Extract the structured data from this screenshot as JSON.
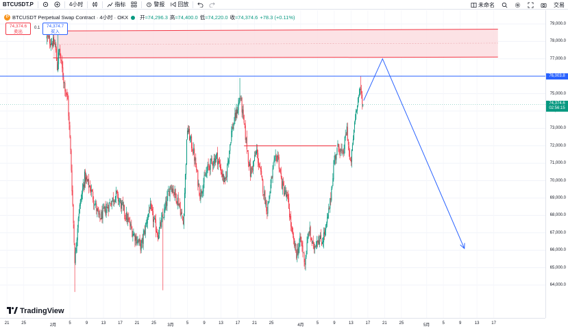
{
  "toolbar": {
    "symbol": "BTCUSDT.P",
    "interval": "4小时",
    "indicators_label": "指标",
    "alert_label": "警报",
    "replay_label": "回放",
    "layout_name": "未命名",
    "trade_label": "交易"
  },
  "legend": {
    "title": "BTCUSDT Perpetual Swap Contract · 4小时 · OKX",
    "open_label": "开",
    "open_value": "≈74,29",
    "open_value_tail": "6.3",
    "high_label": "高",
    "high_value": "≈74,400.0",
    "low_label": "低",
    "low_value": "≈74,220.0",
    "close_label": "收",
    "close_value": "≈74,374.6",
    "change_value": "+78.3 (+0.11%)"
  },
  "trade": {
    "sell_price": "74,374.6",
    "sell_label": "卖出",
    "spread": "0.1",
    "buy_price": "74,374.7",
    "buy_label": "买入"
  },
  "price_tags": {
    "level_price": "76,003.8",
    "last_price": "74,374.6",
    "countdown": "02:56:15"
  },
  "branding": {
    "logo_text": "TradingView"
  },
  "colors": {
    "up": "#089981",
    "down": "#f23645",
    "zone_fill": "#fcdde0",
    "zone_border": "#f23645",
    "level_line": "#2962ff",
    "projection": "#2962ff"
  },
  "chart_data": {
    "type": "candlestick",
    "ylim": [
      63500,
      79100
    ],
    "y_ticks": [
      "79,000.0",
      "78,000.0",
      "77,000.0",
      "75,000.0",
      "74,000.0",
      "73,000.0",
      "72,000.0",
      "71,000.0",
      "70,000.0",
      "69,000.0",
      "68,000.0",
      "67,000.0",
      "66,000.0",
      "65,000.0",
      "64,000.0"
    ],
    "y_tick_values": [
      79000,
      78000,
      77000,
      75000,
      74000,
      73000,
      72000,
      71000,
      70000,
      69000,
      68000,
      67000,
      66000,
      65000,
      64000
    ],
    "x_ticks": [
      "21",
      "25",
      "2月",
      "5",
      "9",
      "13",
      "17",
      "21",
      "25",
      "3月",
      "5",
      "9",
      "13",
      "17",
      "21",
      "25",
      "4月",
      "5",
      "9",
      "13",
      "17",
      "21",
      "25",
      "5月",
      "5",
      "9",
      "13",
      "17"
    ],
    "x_tick_days": [
      -11,
      -7,
      0,
      4,
      8,
      12,
      16,
      20,
      24,
      28,
      32,
      36,
      40,
      44,
      48,
      52,
      59,
      63,
      67,
      71,
      75,
      79,
      83,
      89,
      93,
      97,
      101,
      105
    ],
    "candles_per_day": 6,
    "first_candle_day": -1.5,
    "anchors": [
      {
        "day": -1.5,
        "price": 78200
      },
      {
        "day": 0.5,
        "price": 77800
      },
      {
        "day": 1.0,
        "price": 76500
      },
      {
        "day": 1.5,
        "price": 77500
      },
      {
        "day": 2.5,
        "price": 75800
      },
      {
        "day": 3.5,
        "price": 74600
      },
      {
        "day": 4.2,
        "price": 71500
      },
      {
        "day": 5.2,
        "price": 65300
      },
      {
        "day": 6.0,
        "price": 68000
      },
      {
        "day": 7.5,
        "price": 70200
      },
      {
        "day": 9.0,
        "price": 69500
      },
      {
        "day": 11.0,
        "price": 67800
      },
      {
        "day": 13.0,
        "price": 68500
      },
      {
        "day": 15.0,
        "price": 69200
      },
      {
        "day": 17.0,
        "price": 68200
      },
      {
        "day": 19.0,
        "price": 67000
      },
      {
        "day": 21.0,
        "price": 66200
      },
      {
        "day": 23.0,
        "price": 68500
      },
      {
        "day": 25.0,
        "price": 66900
      },
      {
        "day": 26.5,
        "price": 68200
      },
      {
        "day": 28.0,
        "price": 69800
      },
      {
        "day": 30.0,
        "price": 68700
      },
      {
        "day": 31.0,
        "price": 67500
      },
      {
        "day": 32.0,
        "price": 73000
      },
      {
        "day": 33.5,
        "price": 71600
      },
      {
        "day": 35.0,
        "price": 69200
      },
      {
        "day": 37.0,
        "price": 70800
      },
      {
        "day": 39.0,
        "price": 71400
      },
      {
        "day": 41.0,
        "price": 69800
      },
      {
        "day": 42.5,
        "price": 72800
      },
      {
        "day": 44.0,
        "price": 74200
      },
      {
        "day": 44.6,
        "price": 74900
      },
      {
        "day": 45.5,
        "price": 73200
      },
      {
        "day": 47.0,
        "price": 70400
      },
      {
        "day": 48.5,
        "price": 71700
      },
      {
        "day": 50.0,
        "price": 69600
      },
      {
        "day": 51.0,
        "price": 68300
      },
      {
        "day": 52.5,
        "price": 70800
      },
      {
        "day": 53.5,
        "price": 71500
      },
      {
        "day": 54.5,
        "price": 69800
      },
      {
        "day": 56.0,
        "price": 68800
      },
      {
        "day": 57.0,
        "price": 66800
      },
      {
        "day": 58.0,
        "price": 65800
      },
      {
        "day": 59.0,
        "price": 66600
      },
      {
        "day": 60.0,
        "price": 65300
      },
      {
        "day": 61.0,
        "price": 67200
      },
      {
        "day": 62.0,
        "price": 66100
      },
      {
        "day": 63.0,
        "price": 66700
      },
      {
        "day": 64.0,
        "price": 66500
      },
      {
        "day": 65.0,
        "price": 67200
      },
      {
        "day": 66.0,
        "price": 68700
      },
      {
        "day": 67.0,
        "price": 71200
      },
      {
        "day": 68.0,
        "price": 72000
      },
      {
        "day": 69.0,
        "price": 71400
      },
      {
        "day": 70.0,
        "price": 73000
      },
      {
        "day": 70.8,
        "price": 70800
      },
      {
        "day": 71.3,
        "price": 71800
      },
      {
        "day": 71.8,
        "price": 73300
      },
      {
        "day": 72.5,
        "price": 74600
      },
      {
        "day": 73.3,
        "price": 75200
      },
      {
        "day": 73.9,
        "price": 74374.6
      }
    ],
    "drawings": {
      "resistance_zone": {
        "start_day": 0.0,
        "end_day": 106,
        "top": 78600,
        "bottom": 77050,
        "top_end": 78700,
        "bottom_end": 77100
      },
      "level_line": {
        "price": 76003.8
      },
      "flat_line": {
        "start_day": 45.5,
        "end_day": 67.5,
        "price": 72000
      },
      "projection": [
        {
          "day": 74.0,
          "price": 74600
        },
        {
          "day": 78.5,
          "price": 77000
        },
        {
          "day": 98.0,
          "price": 66100
        }
      ]
    }
  }
}
